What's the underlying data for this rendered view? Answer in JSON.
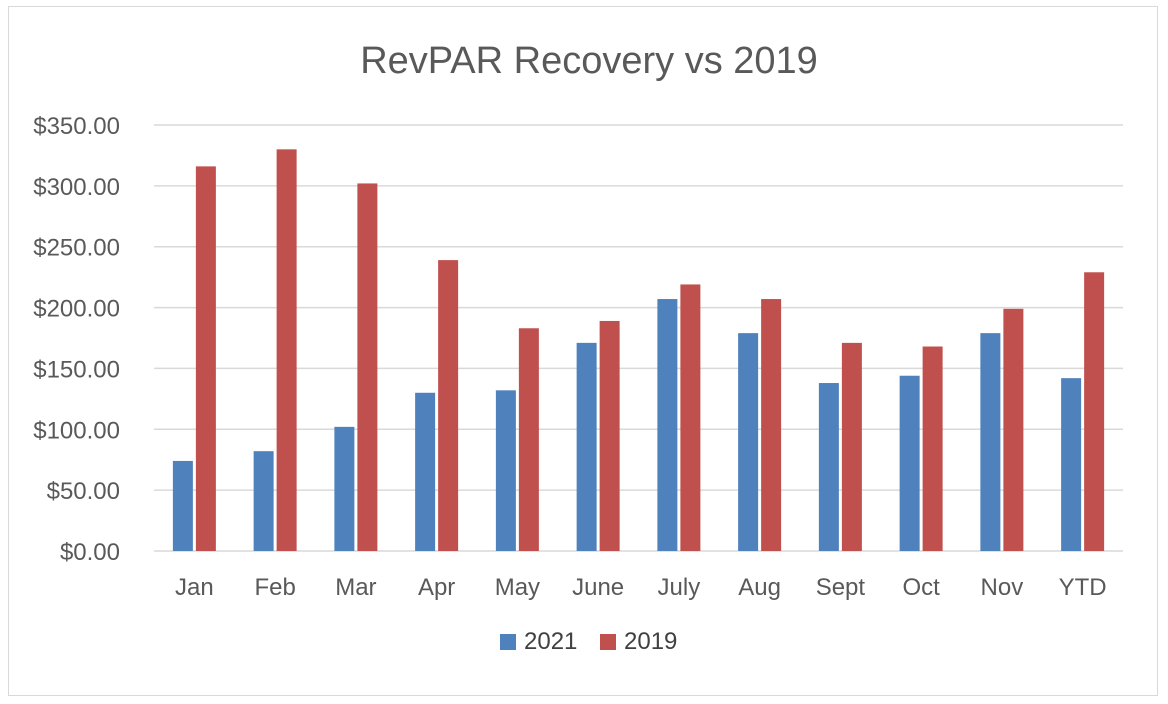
{
  "chart_data": {
    "type": "bar",
    "title": "RevPAR Recovery vs 2019",
    "categories": [
      "Jan",
      "Feb",
      "Mar",
      "Apr",
      "May",
      "June",
      "July",
      "Aug",
      "Sept",
      "Oct",
      "Nov",
      "YTD"
    ],
    "series": [
      {
        "name": "2021",
        "color": "#4f81bd",
        "values": [
          74,
          82,
          102,
          130,
          132,
          171,
          207,
          179,
          138,
          144,
          179,
          142
        ]
      },
      {
        "name": "2019",
        "color": "#c0504d",
        "values": [
          316,
          330,
          302,
          239,
          183,
          189,
          219,
          207,
          171,
          168,
          199,
          229
        ]
      }
    ],
    "ylim": [
      0,
      350
    ],
    "yticks": [
      0,
      50,
      100,
      150,
      200,
      250,
      300,
      350
    ],
    "ytick_labels": [
      "$0.00",
      "$50.00",
      "$100.00",
      "$150.00",
      "$200.00",
      "$250.00",
      "$300.00",
      "$350.00"
    ],
    "xlabel": "",
    "ylabel": "",
    "grid": true,
    "legend_position": "bottom",
    "gridline_color": "#d9d9d9"
  }
}
